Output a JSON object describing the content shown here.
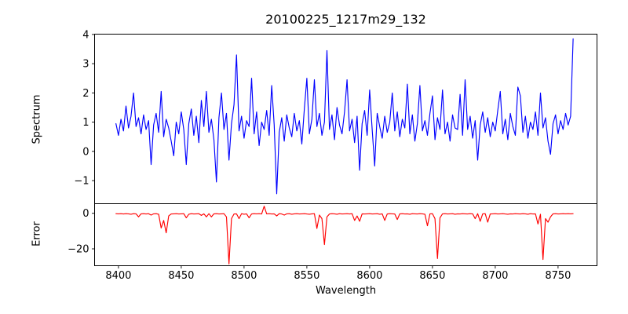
{
  "figure": {
    "background": "#ffffff",
    "axes_color": "#000000",
    "tick_color": "#000000"
  },
  "chart_data": [
    {
      "type": "line",
      "panel": "spectrum",
      "title": "20100225_1217m29_132",
      "ylabel": "Spectrum",
      "line_color": "#0000ff",
      "xlim": [
        8381,
        8781
      ],
      "ylim": [
        -1.79,
        4.01
      ],
      "yticks": [
        -1,
        0,
        1,
        2,
        3,
        4
      ],
      "grid": false,
      "legend": "none",
      "x_start": 8398,
      "x_step": 2,
      "values": [
        0.95,
        0.55,
        1.1,
        0.7,
        1.55,
        0.8,
        1.2,
        2.0,
        0.85,
        1.15,
        0.6,
        1.25,
        0.75,
        1.05,
        -0.45,
        0.9,
        1.3,
        0.65,
        2.05,
        0.5,
        1.1,
        0.8,
        0.35,
        -0.15,
        1.0,
        0.6,
        1.35,
        0.75,
        -0.45,
        0.95,
        1.45,
        0.55,
        1.2,
        0.3,
        1.74,
        0.85,
        2.05,
        0.65,
        1.1,
        0.4,
        -1.05,
        1.15,
        2.0,
        0.75,
        1.3,
        -0.3,
        0.95,
        1.6,
        3.3,
        0.7,
        1.2,
        0.45,
        1.05,
        0.85,
        2.5,
        0.6,
        1.35,
        0.2,
        1.0,
        0.75,
        1.4,
        0.55,
        2.25,
        0.9,
        -1.45,
        0.65,
        1.15,
        0.35,
        1.25,
        0.8,
        0.5,
        1.3,
        0.7,
        1.05,
        0.25,
        1.45,
        2.5,
        0.6,
        1.1,
        2.45,
        0.85,
        1.3,
        0.55,
        1.0,
        3.45,
        0.75,
        1.25,
        0.4,
        1.5,
        0.9,
        0.6,
        1.35,
        2.45,
        0.7,
        1.1,
        0.3,
        1.2,
        -0.65,
        0.95,
        1.4,
        0.55,
        2.1,
        0.75,
        -0.5,
        1.3,
        0.85,
        0.45,
        1.2,
        0.65,
        1.0,
        2.0,
        0.7,
        1.35,
        0.5,
        1.1,
        0.8,
        2.3,
        0.6,
        1.25,
        0.35,
        0.95,
        2.25,
        0.7,
        1.05,
        0.55,
        1.3,
        1.9,
        0.4,
        1.15,
        0.75,
        2.1,
        0.6,
        1.0,
        0.35,
        1.25,
        0.8,
        0.75,
        1.95,
        0.55,
        2.45,
        0.75,
        1.2,
        0.45,
        1.05,
        -0.3,
        0.9,
        1.35,
        0.65,
        1.15,
        0.5,
        1.0,
        0.7,
        1.4,
        2.05,
        0.6,
        1.1,
        0.4,
        1.3,
        0.85,
        0.55,
        2.2,
        1.9,
        0.65,
        1.2,
        0.45,
        1.0,
        0.75,
        1.35,
        0.55,
        2.0,
        0.8,
        1.15,
        0.35,
        -0.1,
        0.95,
        1.25,
        0.6,
        1.05,
        0.75,
        1.3,
        0.9,
        1.2,
        3.85
      ]
    },
    {
      "type": "line",
      "panel": "error",
      "ylabel": "Error",
      "xlabel": "Wavelength",
      "line_color": "#ff0000",
      "xlim": [
        8381,
        8781
      ],
      "ylim": [
        -29.5,
        5.4
      ],
      "yticks": [
        -20,
        0
      ],
      "xticks": [
        8400,
        8450,
        8500,
        8550,
        8600,
        8650,
        8700,
        8750
      ],
      "grid": false,
      "legend": "none",
      "x_start": 8398,
      "x_step": 2,
      "values": [
        -0.2,
        -0.3,
        -0.2,
        -0.4,
        -0.2,
        -0.3,
        -0.5,
        -0.2,
        -0.3,
        -2.0,
        -0.3,
        -0.2,
        -0.4,
        -0.2,
        -1.0,
        -0.3,
        -0.2,
        -0.5,
        -8.3,
        -4.0,
        -11.0,
        -1.5,
        -0.4,
        -0.3,
        -0.2,
        -0.4,
        -0.3,
        -0.2,
        -2.5,
        -0.5,
        -0.2,
        -0.4,
        -0.3,
        -0.2,
        -1.2,
        -0.3,
        -2.0,
        -0.2,
        -2.0,
        -0.3,
        -0.2,
        -0.4,
        -0.3,
        -0.2,
        -2.0,
        -28.5,
        -3.0,
        -0.4,
        -0.3,
        -3.0,
        -0.2,
        -0.5,
        -0.3,
        -2.5,
        -0.4,
        -0.2,
        -0.3,
        -0.2,
        -0.4,
        4.0,
        -0.3,
        -0.2,
        -0.4,
        -0.3,
        -1.5,
        -0.2,
        -0.4,
        -1.0,
        -0.3,
        -0.2,
        -0.5,
        -0.3,
        -0.2,
        -0.4,
        -0.3,
        -0.2,
        -0.4,
        -0.5,
        -0.3,
        -0.2,
        -8.5,
        -1.0,
        -3.0,
        -17.6,
        -2.0,
        -0.4,
        -0.2,
        -0.3,
        -0.5,
        -0.2,
        -0.4,
        -0.3,
        -0.2,
        -0.4,
        -0.2,
        -4.0,
        -1.5,
        -4.5,
        -0.3,
        -0.4,
        -0.3,
        -0.2,
        -0.4,
        -0.3,
        -0.2,
        -0.5,
        -0.3,
        -4.0,
        -0.4,
        -0.2,
        -0.3,
        -0.4,
        -3.5,
        -0.3,
        -0.2,
        -0.4,
        -0.3,
        -0.5,
        -0.2,
        -0.3,
        -0.4,
        -0.2,
        -0.3,
        -0.5,
        -7.0,
        -0.3,
        -0.2,
        -3.0,
        -25.5,
        -2.5,
        -0.3,
        -0.2,
        -0.4,
        -0.3,
        -0.2,
        -0.5,
        -0.3,
        -0.4,
        -0.2,
        -0.3,
        -0.4,
        -0.2,
        -0.3,
        -3.0,
        -0.2,
        -4.5,
        -0.3,
        -0.2,
        -5.0,
        -0.4,
        -0.3,
        -0.2,
        -0.4,
        -0.3,
        -0.2,
        -0.4,
        -0.5,
        -0.3,
        -0.4,
        -0.2,
        -0.3,
        -0.4,
        -0.2,
        -0.3,
        -0.5,
        -0.2,
        -0.4,
        -0.3,
        -6.0,
        -0.5,
        -26.0,
        -3.0,
        -5.0,
        -2.0,
        -0.3,
        -0.2,
        -0.4,
        -0.3,
        -0.2,
        -0.3,
        -0.2,
        -0.3,
        -0.2
      ]
    }
  ]
}
